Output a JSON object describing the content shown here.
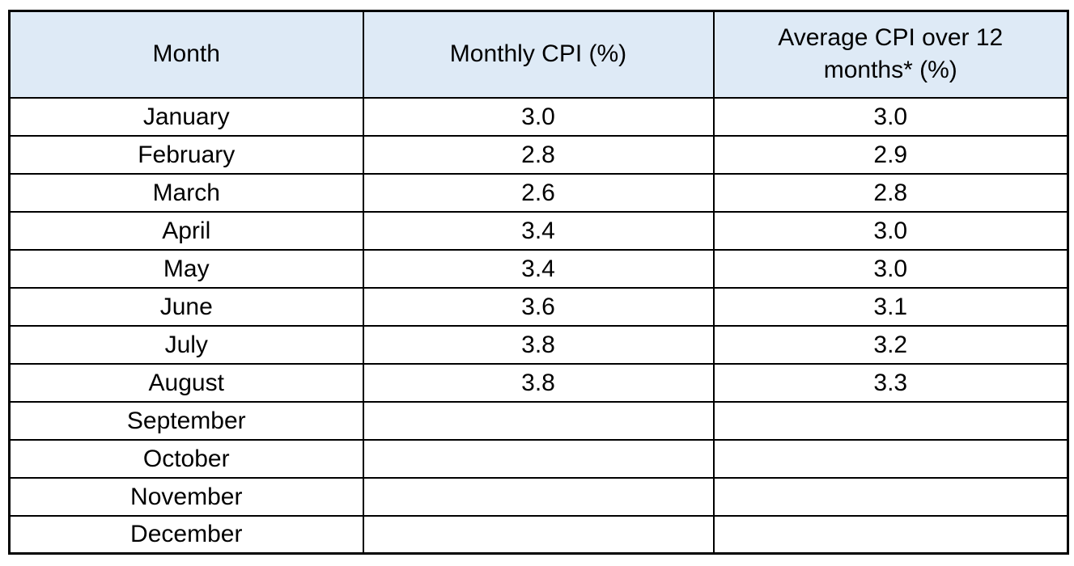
{
  "chart_data": {
    "type": "table",
    "columns": [
      "Month",
      "Monthly CPI (%)",
      "Average CPI over 12 months* (%)"
    ],
    "rows": [
      [
        "January",
        "3.0",
        "3.0"
      ],
      [
        "February",
        "2.8",
        "2.9"
      ],
      [
        "March",
        "2.6",
        "2.8"
      ],
      [
        "April",
        "3.4",
        "3.0"
      ],
      [
        "May",
        "3.4",
        "3.0"
      ],
      [
        "June",
        "3.6",
        "3.1"
      ],
      [
        "July",
        "3.8",
        "3.2"
      ],
      [
        "August",
        "3.8",
        "3.3"
      ],
      [
        "September",
        "",
        ""
      ],
      [
        "October",
        "",
        ""
      ],
      [
        "November",
        "",
        ""
      ],
      [
        "December",
        "",
        ""
      ]
    ],
    "layout": {
      "header_background": "#DEEAF6",
      "grid": "on",
      "alignment": "center"
    }
  },
  "colors": {
    "header_bg": "#DEEAF6",
    "border": "#000000",
    "text": "#000000",
    "page_bg": "#FFFFFF"
  }
}
